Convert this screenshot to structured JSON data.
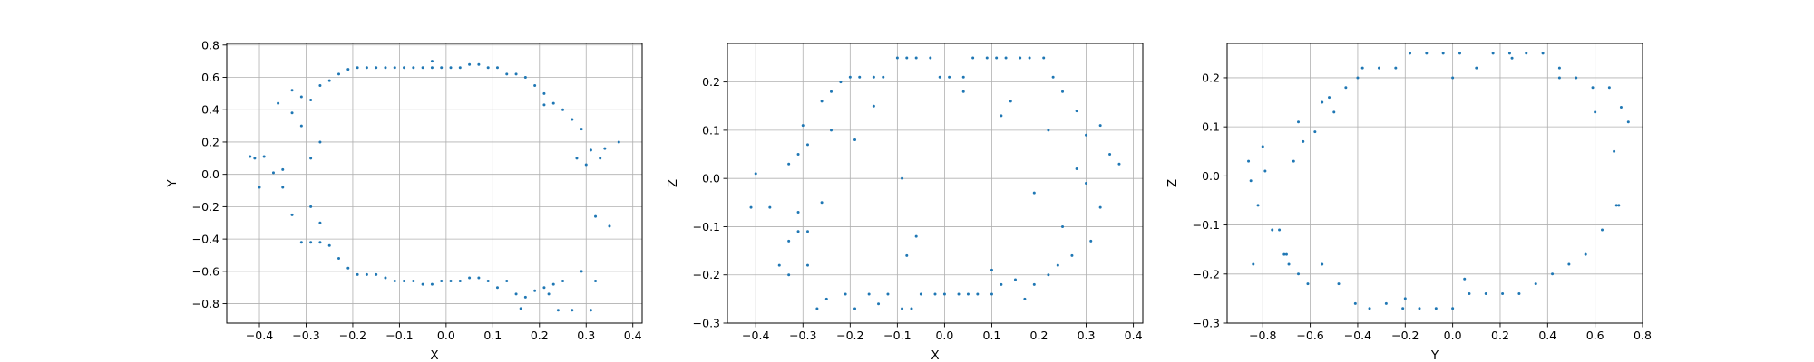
{
  "figure": {
    "point_color": "#1f77b4",
    "grid": true
  },
  "chart_data": [
    {
      "type": "scatter",
      "title": "",
      "xlabel": "X",
      "ylabel": "Y",
      "xlim": [
        -0.47,
        0.42
      ],
      "ylim": [
        -0.92,
        0.81
      ],
      "xticks": [
        -0.4,
        -0.3,
        -0.2,
        -0.1,
        0.0,
        0.1,
        0.2,
        0.3,
        0.4
      ],
      "yticks": [
        -0.8,
        -0.6,
        -0.4,
        -0.2,
        0.0,
        0.2,
        0.4,
        0.6,
        0.8
      ],
      "xtick_labels": [
        "−0.4",
        "−0.3",
        "−0.2",
        "−0.1",
        "0.0",
        "0.1",
        "0.2",
        "0.3",
        "0.4"
      ],
      "ytick_labels": [
        "−0.8",
        "−0.6",
        "−0.4",
        "−0.2",
        "0.0",
        "0.2",
        "0.4",
        "0.6",
        "0.8"
      ],
      "grid": true,
      "series": [
        {
          "x": [
            -0.42,
            -0.39,
            -0.37,
            -0.35,
            -0.35,
            -0.33,
            -0.33,
            -0.31,
            -0.31,
            -0.31,
            -0.29,
            -0.29,
            -0.29,
            -0.29,
            -0.27,
            -0.27,
            -0.27,
            -0.27,
            -0.25,
            -0.25,
            -0.23,
            -0.23,
            -0.21,
            -0.21,
            -0.19,
            -0.19,
            -0.17,
            -0.17,
            -0.15,
            -0.15,
            -0.13,
            -0.13,
            -0.11,
            -0.11,
            -0.09,
            -0.09,
            -0.07,
            -0.07,
            -0.05,
            -0.05,
            -0.03,
            -0.03,
            -0.01,
            -0.01,
            0.01,
            0.01,
            0.03,
            0.03,
            0.05,
            0.05,
            0.07,
            0.07,
            0.09,
            0.09,
            0.11,
            0.11,
            0.13,
            0.13,
            0.15,
            0.15,
            0.17,
            0.17,
            0.19,
            0.19,
            0.21,
            0.21,
            0.23,
            0.23,
            0.25,
            0.25,
            0.27,
            0.27,
            0.29,
            0.29,
            0.31,
            0.31,
            0.33,
            0.34,
            0.35,
            0.37,
            -0.4,
            -0.33,
            -0.36,
            0.21,
            0.28,
            0.32,
            0.3,
            0.22,
            -0.03,
            0.16,
            0.32,
            0.24,
            -0.41
          ],
          "y": [
            0.11,
            0.11,
            0.01,
            -0.08,
            0.03,
            0.52,
            -0.25,
            0.48,
            0.3,
            -0.42,
            0.46,
            0.1,
            -0.2,
            -0.42,
            0.55,
            0.2,
            -0.3,
            -0.42,
            0.58,
            -0.44,
            0.62,
            -0.52,
            0.65,
            -0.58,
            0.66,
            -0.62,
            0.66,
            -0.62,
            0.66,
            -0.62,
            0.66,
            -0.64,
            0.66,
            -0.66,
            0.66,
            -0.66,
            0.66,
            -0.66,
            0.66,
            -0.68,
            0.66,
            -0.68,
            0.66,
            -0.66,
            0.66,
            -0.66,
            0.66,
            -0.66,
            0.68,
            -0.64,
            0.68,
            -0.64,
            0.66,
            -0.66,
            0.66,
            -0.7,
            0.62,
            -0.66,
            0.62,
            -0.74,
            0.6,
            -0.76,
            0.55,
            -0.72,
            0.5,
            -0.7,
            0.44,
            -0.68,
            0.4,
            -0.66,
            0.34,
            -0.84,
            0.28,
            -0.6,
            0.15,
            -0.84,
            0.1,
            0.16,
            -0.32,
            0.2,
            -0.08,
            0.38,
            0.44,
            0.43,
            0.1,
            -0.66,
            0.06,
            -0.74,
            0.7,
            -0.83,
            -0.26,
            -0.84,
            0.1
          ]
        }
      ]
    },
    {
      "type": "scatter",
      "title": "",
      "xlabel": "X",
      "ylabel": "Z",
      "xlim": [
        -0.46,
        0.42
      ],
      "ylim": [
        -0.3,
        0.28
      ],
      "xticks": [
        -0.4,
        -0.3,
        -0.2,
        -0.1,
        0.0,
        0.1,
        0.2,
        0.3,
        0.4
      ],
      "yticks": [
        -0.3,
        -0.2,
        -0.1,
        0.0,
        0.1,
        0.2
      ],
      "xtick_labels": [
        "−0.4",
        "−0.3",
        "−0.2",
        "−0.1",
        "0.0",
        "0.1",
        "0.2",
        "0.3",
        "0.4"
      ],
      "ytick_labels": [
        "−0.3",
        "−0.2",
        "−0.1",
        "0.0",
        "0.1",
        "0.2"
      ],
      "grid": true,
      "series": [
        {
          "x": [
            -0.41,
            -0.4,
            -0.37,
            -0.35,
            -0.33,
            -0.33,
            -0.31,
            -0.31,
            -0.3,
            -0.29,
            -0.27,
            -0.26,
            -0.25,
            -0.24,
            -0.22,
            -0.21,
            -0.2,
            -0.19,
            -0.18,
            -0.16,
            -0.15,
            -0.14,
            -0.13,
            -0.12,
            -0.1,
            -0.09,
            -0.08,
            -0.07,
            -0.06,
            -0.05,
            -0.03,
            -0.02,
            -0.01,
            0.0,
            0.01,
            0.03,
            0.04,
            0.05,
            0.06,
            0.07,
            0.09,
            0.1,
            0.11,
            0.12,
            0.13,
            0.15,
            0.16,
            0.17,
            0.18,
            0.19,
            0.21,
            0.22,
            0.23,
            0.24,
            0.25,
            0.27,
            0.28,
            0.3,
            0.31,
            0.33,
            0.35,
            0.37,
            -0.33,
            -0.31,
            -0.29,
            -0.26,
            -0.19,
            -0.09,
            -0.06,
            0.12,
            0.19,
            0.22,
            0.25,
            -0.29,
            -0.24,
            -0.15,
            -0.08,
            0.04,
            0.1,
            0.14,
            0.28,
            0.3,
            0.33
          ],
          "y": [
            -0.06,
            0.01,
            -0.06,
            -0.18,
            -0.2,
            0.03,
            -0.11,
            0.05,
            0.11,
            -0.18,
            -0.27,
            0.16,
            -0.25,
            0.18,
            0.2,
            -0.24,
            0.21,
            -0.27,
            0.21,
            -0.24,
            0.21,
            -0.26,
            0.21,
            -0.24,
            0.25,
            -0.27,
            0.25,
            -0.27,
            0.25,
            -0.24,
            0.25,
            -0.24,
            0.21,
            -0.24,
            0.21,
            -0.24,
            0.21,
            -0.24,
            0.25,
            -0.24,
            0.25,
            -0.24,
            0.25,
            -0.22,
            0.25,
            -0.21,
            0.25,
            -0.25,
            0.25,
            -0.22,
            0.25,
            -0.2,
            0.21,
            -0.18,
            0.18,
            -0.16,
            0.14,
            0.09,
            -0.13,
            0.11,
            0.05,
            0.03,
            -0.13,
            -0.07,
            0.07,
            -0.05,
            0.08,
            0.0,
            -0.12,
            0.13,
            -0.03,
            0.1,
            -0.1,
            -0.11,
            0.1,
            0.15,
            -0.16,
            0.18,
            -0.19,
            0.16,
            0.02,
            -0.01,
            -0.06
          ]
        }
      ]
    },
    {
      "type": "scatter",
      "title": "",
      "xlabel": "Y",
      "ylabel": "Z",
      "xlim": [
        -0.95,
        0.8
      ],
      "ylim": [
        -0.3,
        0.27
      ],
      "xticks": [
        -0.8,
        -0.6,
        -0.4,
        -0.2,
        0.0,
        0.2,
        0.4,
        0.6,
        0.8
      ],
      "yticks": [
        -0.3,
        -0.2,
        -0.1,
        0.0,
        0.1,
        0.2
      ],
      "xtick_labels": [
        "−0.8",
        "−0.6",
        "−0.4",
        "−0.2",
        "0.0",
        "0.2",
        "0.4",
        "0.6",
        "0.8"
      ],
      "ytick_labels": [
        "−0.3",
        "−0.2",
        "−0.1",
        "0.0",
        "0.1",
        "0.2"
      ],
      "grid": true,
      "series": [
        {
          "x": [
            -0.86,
            -0.85,
            -0.82,
            -0.79,
            -0.76,
            -0.73,
            -0.71,
            -0.69,
            -0.67,
            -0.65,
            -0.63,
            -0.61,
            -0.58,
            -0.55,
            -0.52,
            -0.48,
            -0.45,
            -0.41,
            -0.38,
            -0.4,
            -0.35,
            -0.31,
            -0.28,
            -0.24,
            -0.21,
            -0.18,
            -0.14,
            -0.11,
            -0.07,
            -0.04,
            0.0,
            0.03,
            0.07,
            0.1,
            0.14,
            0.17,
            0.21,
            0.24,
            0.28,
            0.31,
            0.35,
            0.38,
            0.42,
            0.45,
            0.49,
            0.52,
            0.56,
            0.59,
            0.63,
            0.66,
            0.69,
            0.71,
            0.74,
            -0.84,
            -0.8,
            -0.7,
            -0.65,
            -0.55,
            -0.5,
            -0.2,
            0.0,
            0.05,
            0.25,
            0.45,
            0.6,
            0.68,
            0.7
          ],
          "y": [
            0.03,
            -0.01,
            -0.06,
            0.01,
            -0.11,
            -0.11,
            -0.16,
            -0.18,
            0.03,
            -0.2,
            0.07,
            -0.22,
            0.09,
            0.15,
            0.16,
            -0.22,
            0.18,
            -0.26,
            0.22,
            0.2,
            -0.27,
            0.22,
            -0.26,
            0.22,
            -0.27,
            0.25,
            -0.27,
            0.25,
            -0.27,
            0.25,
            -0.27,
            0.25,
            -0.24,
            0.22,
            -0.24,
            0.25,
            -0.24,
            0.25,
            -0.24,
            0.25,
            -0.22,
            0.25,
            -0.2,
            0.2,
            -0.18,
            0.2,
            -0.16,
            0.18,
            -0.11,
            0.18,
            -0.06,
            0.14,
            0.11,
            -0.18,
            0.06,
            -0.16,
            0.11,
            -0.18,
            0.13,
            -0.25,
            0.2,
            -0.21,
            0.24,
            0.22,
            0.13,
            0.05,
            -0.06
          ]
        }
      ]
    }
  ]
}
